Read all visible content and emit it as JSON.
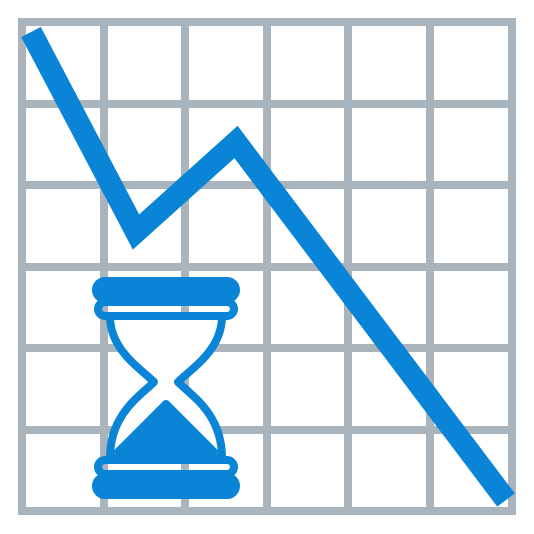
{
  "illustration": {
    "subject": "declining-trend-with-hourglass",
    "icons": [
      "grid-icon",
      "downtrend-line-icon",
      "hourglass-icon"
    ],
    "colors": {
      "grid": "#A9B4BC",
      "accent": "#0A84D6",
      "background": "#FFFFFF"
    }
  }
}
